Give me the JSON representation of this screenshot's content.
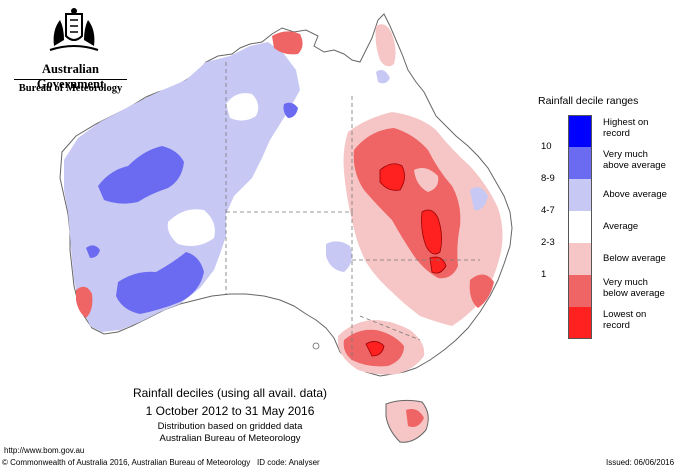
{
  "header": {
    "government": "Australian Government",
    "bureau": "Bureau of Meteorology"
  },
  "map": {
    "title": "Rainfall deciles (using all avail. data)",
    "period": "1 October 2012 to 31 May 2016",
    "note1": "Distribution based on gridded data",
    "note2": "Australian Bureau of Meteorology"
  },
  "legend": {
    "title": "Rainfall decile ranges",
    "items": [
      {
        "range": "",
        "label": "Highest on record",
        "color": "#0000ff"
      },
      {
        "range": "10",
        "label": "Very much above average",
        "color": "#6b6bf2"
      },
      {
        "range": "8-9",
        "label": "Above average",
        "color": "#c8c8f4"
      },
      {
        "range": "4-7",
        "label": "Average",
        "color": "#ffffff"
      },
      {
        "range": "2-3",
        "label": "Below average",
        "color": "#f6c6c6"
      },
      {
        "range": "1",
        "label": "Very much below average",
        "color": "#ef6464"
      },
      {
        "range": "",
        "label": "Lowest on record",
        "color": "#ff2020"
      }
    ]
  },
  "footer": {
    "url": "http://www.bom.gov.au",
    "copyright": "© Commonwealth of Australia 2016, Australian Bureau of Meteorology",
    "id_code": "ID code: Analyser",
    "issued": "Issued: 06/06/2016"
  }
}
